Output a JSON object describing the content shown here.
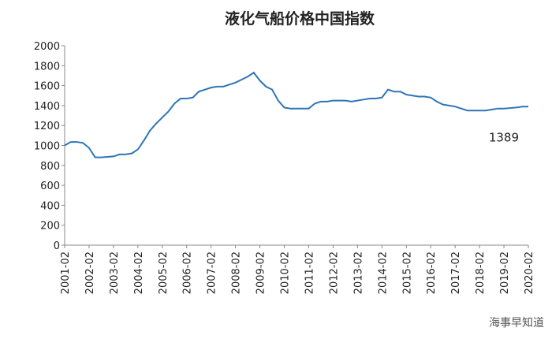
{
  "chart_data": {
    "type": "line",
    "title": "液化气船价格中国指数",
    "x": [
      "2001-02",
      null,
      null,
      null,
      "2002-02",
      null,
      null,
      null,
      "2003-02",
      null,
      null,
      null,
      "2004-02",
      null,
      null,
      null,
      "2005-02",
      null,
      null,
      null,
      "2006-02",
      null,
      null,
      null,
      "2007-02",
      null,
      null,
      null,
      "2008-02",
      null,
      null,
      null,
      "2009-02",
      null,
      null,
      null,
      "2010-02",
      null,
      null,
      null,
      "2011-02",
      null,
      null,
      null,
      "2012-02",
      null,
      null,
      null,
      "2013-02",
      null,
      null,
      null,
      "2014-02",
      null,
      null,
      null,
      "2015-02",
      null,
      null,
      null,
      "2016-02",
      null,
      null,
      null,
      "2017-02",
      null,
      null,
      null,
      "2018-02",
      null,
      null,
      null,
      "2019-02",
      null,
      null,
      null,
      "2020-02"
    ],
    "series": [
      {
        "color": "#2e75b6",
        "values": [
          1000,
          1035,
          1035,
          1025,
          975,
          880,
          880,
          885,
          890,
          910,
          910,
          920,
          960,
          1050,
          1150,
          1220,
          1280,
          1340,
          1420,
          1470,
          1470,
          1480,
          1540,
          1560,
          1580,
          1590,
          1590,
          1610,
          1630,
          1660,
          1690,
          1730,
          1650,
          1590,
          1560,
          1450,
          1380,
          1370,
          1370,
          1370,
          1370,
          1420,
          1440,
          1440,
          1450,
          1450,
          1450,
          1440,
          1450,
          1460,
          1470,
          1470,
          1480,
          1560,
          1540,
          1540,
          1510,
          1500,
          1490,
          1490,
          1480,
          1440,
          1410,
          1400,
          1390,
          1370,
          1350,
          1350,
          1350,
          1350,
          1360,
          1370,
          1370,
          1375,
          1380,
          1389,
          1389
        ]
      }
    ],
    "ylim": [
      0,
      2000
    ],
    "yticks": [
      0,
      200,
      400,
      600,
      800,
      1000,
      1200,
      1400,
      1600,
      1800,
      2000
    ],
    "watermark": "海事早知道"
  }
}
